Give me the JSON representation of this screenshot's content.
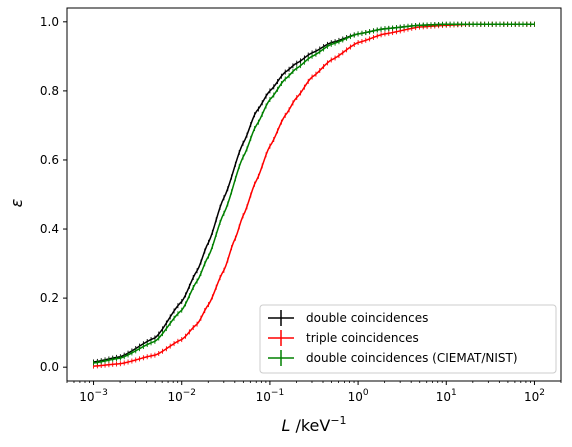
{
  "chart_data": {
    "type": "line",
    "title": "",
    "xlabel": "L /keV⁻¹",
    "xlabel_parts": {
      "var": "L",
      "unit": " /keV",
      "exp": "−1"
    },
    "ylabel": "ε",
    "xscale": "log",
    "xlim": [
      0.0005,
      200
    ],
    "ylim": [
      -0.04,
      1.04
    ],
    "xticks": [
      {
        "value": 0.001,
        "base": "10",
        "exp": "−3"
      },
      {
        "value": 0.01,
        "base": "10",
        "exp": "−2"
      },
      {
        "value": 0.1,
        "base": "10",
        "exp": "−1"
      },
      {
        "value": 1,
        "base": "10",
        "exp": "0"
      },
      {
        "value": 10,
        "base": "10",
        "exp": "1"
      },
      {
        "value": 100,
        "base": "10",
        "exp": "2"
      }
    ],
    "yticks": [
      {
        "value": 0.0,
        "label": "0.0"
      },
      {
        "value": 0.2,
        "label": "0.2"
      },
      {
        "value": 0.4,
        "label": "0.4"
      },
      {
        "value": 0.6,
        "label": "0.6"
      },
      {
        "value": 0.8,
        "label": "0.8"
      },
      {
        "value": 1.0,
        "label": "1.0"
      }
    ],
    "grid": false,
    "legend_position": "bottom-right",
    "series": [
      {
        "name": "double coincidences",
        "color": "#000000",
        "x": [
          0.001,
          0.002,
          0.005,
          0.01,
          0.015,
          0.02,
          0.03,
          0.05,
          0.07,
          0.1,
          0.15,
          0.2,
          0.3,
          0.5,
          1,
          2,
          5,
          10,
          20,
          50,
          100
        ],
        "y": [
          0.015,
          0.03,
          0.085,
          0.19,
          0.28,
          0.36,
          0.49,
          0.65,
          0.74,
          0.8,
          0.855,
          0.88,
          0.91,
          0.94,
          0.965,
          0.98,
          0.99,
          0.993,
          0.993,
          0.993,
          0.993
        ]
      },
      {
        "name": "triple coincidences",
        "color": "#ff0000",
        "x": [
          0.001,
          0.002,
          0.005,
          0.01,
          0.015,
          0.02,
          0.03,
          0.04,
          0.05,
          0.07,
          0.1,
          0.15,
          0.2,
          0.3,
          0.5,
          1,
          2,
          5,
          10,
          20,
          50,
          100
        ],
        "y": [
          0.003,
          0.01,
          0.035,
          0.08,
          0.125,
          0.18,
          0.28,
          0.37,
          0.44,
          0.54,
          0.64,
          0.73,
          0.78,
          0.84,
          0.89,
          0.94,
          0.965,
          0.985,
          0.99,
          0.993,
          0.993,
          0.993
        ]
      },
      {
        "name": "double coincidences (CIEMAT/NIST)",
        "color": "#008000",
        "x": [
          0.001,
          0.002,
          0.005,
          0.01,
          0.015,
          0.02,
          0.03,
          0.05,
          0.07,
          0.1,
          0.15,
          0.2,
          0.3,
          0.5,
          1,
          2,
          5,
          10,
          20,
          50,
          100
        ],
        "y": [
          0.012,
          0.026,
          0.075,
          0.165,
          0.25,
          0.32,
          0.445,
          0.61,
          0.7,
          0.775,
          0.835,
          0.865,
          0.9,
          0.935,
          0.965,
          0.98,
          0.99,
          0.993,
          0.993,
          0.993,
          0.993
        ]
      }
    ]
  }
}
